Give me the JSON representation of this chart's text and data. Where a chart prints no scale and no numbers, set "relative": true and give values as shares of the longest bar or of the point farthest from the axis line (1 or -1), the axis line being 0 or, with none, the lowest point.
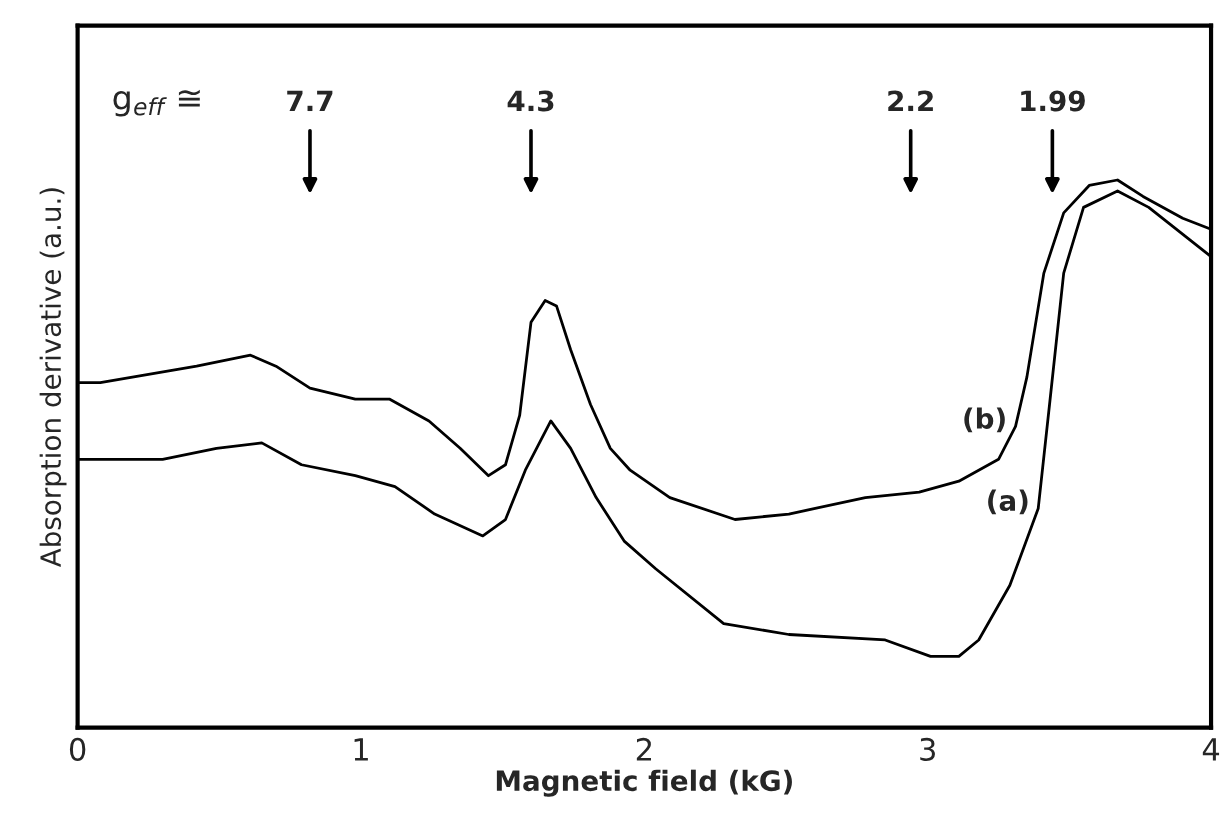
{
  "chart_data": {
    "type": "line",
    "relative": true,
    "xlabel": "Magnetic field (kG)",
    "ylabel": "Absorption derivative (a.u.)",
    "xlim": [
      0,
      4
    ],
    "xticks": [
      0,
      1,
      2,
      3,
      4
    ],
    "tick_labels": "x",
    "grid": false,
    "legend": false,
    "marker": "none",
    "line_style": "solid",
    "series": [
      {
        "name": "(b)",
        "color": "#000000",
        "x": [
          0,
          0.08,
          0.42,
          0.61,
          0.7,
          0.82,
          0.98,
          1.1,
          1.24,
          1.35,
          1.45,
          1.51,
          1.56,
          1.6,
          1.65,
          1.69,
          1.74,
          1.81,
          1.88,
          1.95,
          2.09,
          2.32,
          2.51,
          2.78,
          2.97,
          3.11,
          3.25,
          3.31,
          3.35,
          3.41,
          3.48,
          3.57,
          3.67,
          3.76,
          3.9,
          4.0
        ],
        "values": [
          0.63,
          0.63,
          0.66,
          0.68,
          0.66,
          0.62,
          0.6,
          0.6,
          0.56,
          0.51,
          0.46,
          0.48,
          0.57,
          0.74,
          0.78,
          0.77,
          0.69,
          0.59,
          0.51,
          0.47,
          0.42,
          0.38,
          0.39,
          0.42,
          0.43,
          0.45,
          0.49,
          0.55,
          0.64,
          0.83,
          0.94,
          0.99,
          1.0,
          0.97,
          0.93,
          0.91
        ]
      },
      {
        "name": "(a)",
        "color": "#000000",
        "x": [
          0,
          0.3,
          0.49,
          0.65,
          0.79,
          0.98,
          1.12,
          1.26,
          1.43,
          1.51,
          1.58,
          1.67,
          1.74,
          1.83,
          1.93,
          2.04,
          2.28,
          2.51,
          2.85,
          3.01,
          3.11,
          3.18,
          3.29,
          3.39,
          3.43,
          3.48,
          3.55,
          3.67,
          3.78,
          4.0
        ],
        "values": [
          0.49,
          0.49,
          0.51,
          0.52,
          0.48,
          0.46,
          0.44,
          0.39,
          0.35,
          0.38,
          0.47,
          0.56,
          0.51,
          0.42,
          0.34,
          0.29,
          0.19,
          0.17,
          0.16,
          0.13,
          0.13,
          0.16,
          0.26,
          0.4,
          0.59,
          0.83,
          0.95,
          0.98,
          0.95,
          0.86
        ]
      }
    ],
    "annotations": [
      "g$_{eff}$ ≅",
      "7.7",
      "4.3",
      "2.2",
      "1.99"
    ]
  }
}
